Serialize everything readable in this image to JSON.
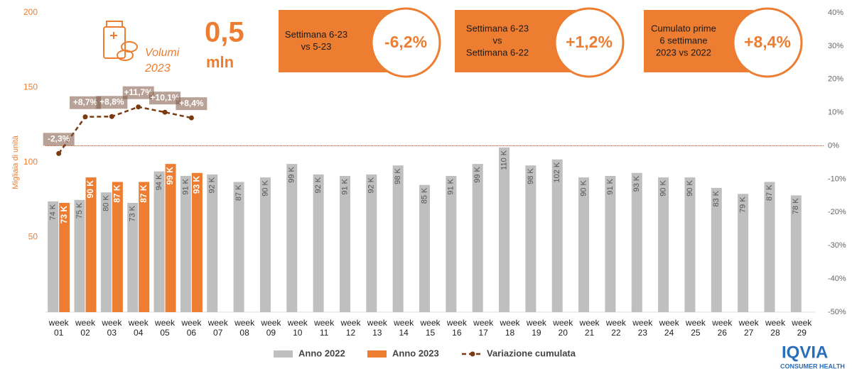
{
  "chart_data": {
    "type": "bar-line",
    "y_label": "Migliaia di unità",
    "categories": [
      "week 01",
      "week 02",
      "week 03",
      "week 04",
      "week 05",
      "week 06",
      "week 07",
      "week 08",
      "week 09",
      "week 10",
      "week 11",
      "week 12",
      "week 13",
      "week 14",
      "week 15",
      "week 16",
      "week 17",
      "week 18",
      "week 19",
      "week 20",
      "week 21",
      "week 22",
      "week 23",
      "week 24",
      "week 25",
      "week 26",
      "week 27",
      "week 28",
      "week 29"
    ],
    "series": [
      {
        "name": "Anno 2022",
        "color": "#bfbfbf",
        "kind": "bar",
        "values": [
          74,
          75,
          80,
          73,
          94,
          91,
          92,
          87,
          90,
          99,
          92,
          91,
          92,
          98,
          85,
          91,
          99,
          110,
          98,
          102,
          90,
          91,
          93,
          90,
          90,
          83,
          79,
          87,
          78
        ],
        "value_labels": [
          "74 K",
          "75 K",
          "80 K",
          "73 K",
          "94 K",
          "91 K",
          "92 K",
          "87 K",
          "90 K",
          "99 K",
          "92 K",
          "91 K",
          "92 K",
          "98 K",
          "85 K",
          "91 K",
          "99 K",
          "110 K",
          "98 K",
          "102 K",
          "90 K",
          "91 K",
          "93 K",
          "90 K",
          "90 K",
          "83 K",
          "79 K",
          "87 K",
          "78 K"
        ]
      },
      {
        "name": "Anno 2023",
        "color": "#ed7d31",
        "kind": "bar",
        "values": [
          73,
          90,
          87,
          87,
          99,
          93,
          null,
          null,
          null,
          null,
          null,
          null,
          null,
          null,
          null,
          null,
          null,
          null,
          null,
          null,
          null,
          null,
          null,
          null,
          null,
          null,
          null,
          null,
          null
        ],
        "value_labels": [
          "73 K",
          "90 K",
          "87 K",
          "87 K",
          "99 K",
          "93 K",
          null,
          null,
          null,
          null,
          null,
          null,
          null,
          null,
          null,
          null,
          null,
          null,
          null,
          null,
          null,
          null,
          null,
          null,
          null,
          null,
          null,
          null,
          null
        ]
      },
      {
        "name": "Variazione cumulata",
        "color": "#7b3a12",
        "kind": "line",
        "axis": "y2",
        "values": [
          -2.3,
          8.7,
          8.8,
          11.7,
          10.1,
          8.4,
          null,
          null,
          null,
          null,
          null,
          null,
          null,
          null,
          null,
          null,
          null,
          null,
          null,
          null,
          null,
          null,
          null,
          null,
          null,
          null,
          null,
          null,
          null
        ],
        "value_labels": [
          "-2,3%",
          "+8,7%",
          "+8,8%",
          "+11,7%",
          "+10,1%",
          "+8,4%",
          null,
          null,
          null,
          null,
          null,
          null,
          null,
          null,
          null,
          null,
          null,
          null,
          null,
          null,
          null,
          null,
          null,
          null,
          null,
          null,
          null,
          null,
          null
        ]
      }
    ],
    "ylim": [
      0,
      200
    ],
    "yticks": [
      50,
      100,
      150,
      200
    ],
    "y2lim": [
      -50,
      40
    ],
    "y2ticks": [
      {
        "value": 40,
        "label": "40%"
      },
      {
        "value": 30,
        "label": "30%"
      },
      {
        "value": 20,
        "label": "20%"
      },
      {
        "value": 10,
        "label": "10%"
      },
      {
        "value": 0,
        "label": "0%"
      },
      {
        "value": -10,
        "label": "-10%"
      },
      {
        "value": -20,
        "label": "-20%"
      },
      {
        "value": -30,
        "label": "-30%"
      },
      {
        "value": -40,
        "label": "-40%"
      },
      {
        "value": -50,
        "label": "-50%"
      }
    ],
    "legend": "bottom",
    "headline": {
      "volume_label": [
        "Volumi",
        "2023"
      ],
      "volume": "0,5",
      "unit": "mln"
    },
    "callouts": [
      {
        "lines": [
          "Settimana 6-23",
          "vs 5-23"
        ],
        "value": "-6,2%"
      },
      {
        "lines": [
          "Settimana 6-23",
          "vs",
          "Settimana 6-22"
        ],
        "value": "+1,2%"
      },
      {
        "lines": [
          "Cumulato prime",
          "6 settimane",
          "2023  vs 2022"
        ],
        "value": "+8,4%"
      }
    ]
  },
  "logo": {
    "name": "IQVIA",
    "tagline": "CONSUMER HEALTH"
  }
}
